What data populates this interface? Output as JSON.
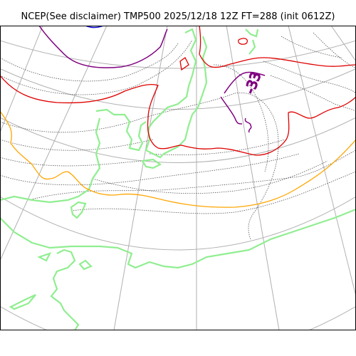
{
  "title": "NCEP(See disclaimer) TMP500 2025/12/18 12Z FT=288 (init 0612Z)",
  "contour_labels": [
    {
      "text": "-33",
      "color": "#800080"
    }
  ],
  "legend_colors": {
    "grid": "#b0b0b0",
    "coastline": "#90ee90",
    "isotherm_dotted": "#555555",
    "isotherm_red": "#e00000",
    "isotherm_orange": "#ffa500",
    "isotherm_purple": "#800080",
    "isotherm_blue": "#0000cc"
  }
}
